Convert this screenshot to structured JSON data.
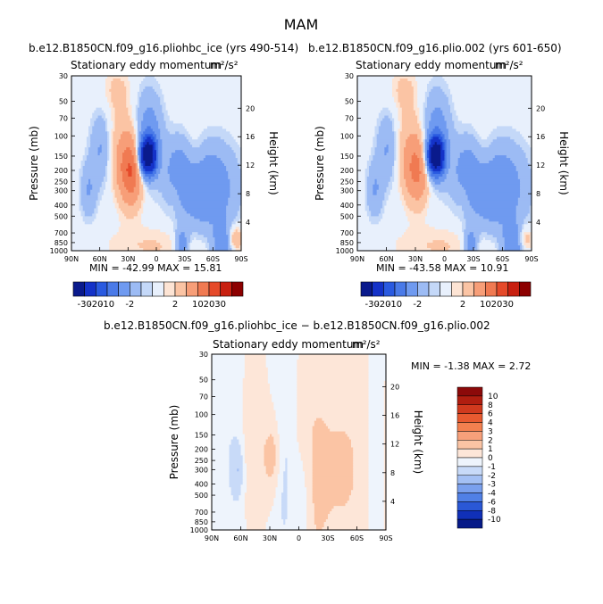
{
  "figure": {
    "title": "MAM"
  },
  "panels": [
    {
      "id": "left",
      "case_title": "b.e12.B1850CN.f09_g16.pliohbc_ice (yrs 490-514)",
      "subtitle": "Stationary eddy momentum",
      "units": "m²/s²",
      "stats": "MIN = -42.99   MAX = 15.81"
    },
    {
      "id": "right",
      "case_title": "b.e12.B1850CN.f09_g16.plio.002 (yrs 601-650)",
      "subtitle": "Stationary eddy momentum",
      "units": "m²/s²",
      "stats": "MIN = -43.58   MAX = 10.91"
    },
    {
      "id": "diff",
      "case_title": "b.e12.B1850CN.f09_g16.pliohbc_ice − b.e12.B1850CN.f09_g16.plio.002",
      "subtitle": "Stationary eddy momentum",
      "units": "m²/s²",
      "stats": "MIN =   -1.38   MAX =   2.72"
    }
  ],
  "axes": {
    "ylabel_left": "Pressure (mb)",
    "ylabel_right": "Height (km)",
    "pressure_ticks": [
      "30",
      "50",
      "70",
      "100",
      "150",
      "200",
      "250",
      "300",
      "400",
      "500",
      "700",
      "850",
      "1000"
    ],
    "height_ticks": [
      "20",
      "16",
      "12",
      "8",
      "4"
    ],
    "lat_ticks": [
      "90N",
      "60N",
      "30N",
      "0",
      "30S",
      "60S",
      "90S"
    ]
  },
  "colorbars": {
    "top": {
      "labels": [
        "-30",
        "-20",
        "-10",
        "-2",
        "2",
        "10",
        "20",
        "30"
      ],
      "colors": [
        "#0a1a8c",
        "#1432c8",
        "#2a5ae0",
        "#4a7ae8",
        "#6f9af0",
        "#9cbbf4",
        "#c4d8f8",
        "#e8f0fc",
        "#fde4d4",
        "#fbc4a4",
        "#f79e78",
        "#f07a52",
        "#e54a2a",
        "#c82010",
        "#8c0000"
      ]
    },
    "diff": {
      "labels": [
        "10",
        "8",
        "6",
        "4",
        "3",
        "2",
        "1",
        "0",
        "-1",
        "-2",
        "-3",
        "-4",
        "-6",
        "-8",
        "-10"
      ],
      "colors": [
        "#8c0a0a",
        "#b01e10",
        "#d03a1e",
        "#e85a30",
        "#f3804f",
        "#f7a07a",
        "#fbc4a4",
        "#fde6d8",
        "#eef4fc",
        "#c8daf8",
        "#a4c0f4",
        "#7aa0ee",
        "#5080e6",
        "#2a58d6",
        "#1030b8",
        "#061a88"
      ]
    }
  },
  "chart_data": [
    {
      "type": "heatmap",
      "title": "b.e12.B1850CN.f09_g16.pliohbc_ice (yrs 490-514)",
      "subtitle": "Stationary eddy momentum m²/s²",
      "xlabel": "",
      "ylabel": "Pressure (mb)",
      "y2label": "Height (km)",
      "x_range": [
        "90N",
        "90S"
      ],
      "y_range": [
        1000,
        30
      ],
      "y_scale": "log",
      "min": -42.99,
      "max": 15.81,
      "features": [
        {
          "lat": 26,
          "p": 200,
          "peak": 14,
          "sign": "positive"
        },
        {
          "lat": 9,
          "p": 150,
          "peak": -40,
          "sign": "negative"
        }
      ]
    },
    {
      "type": "heatmap",
      "title": "b.e12.B1850CN.f09_g16.plio.002 (yrs 601-650)",
      "subtitle": "Stationary eddy momentum m²/s²",
      "xlabel": "",
      "ylabel": "Pressure (mb)",
      "y2label": "Height (km)",
      "x_range": [
        "90N",
        "90S"
      ],
      "y_range": [
        1000,
        30
      ],
      "y_scale": "log",
      "min": -43.58,
      "max": 10.91,
      "features": [
        {
          "lat": 28,
          "p": 200,
          "peak": 10,
          "sign": "positive"
        },
        {
          "lat": 9,
          "p": 150,
          "peak": -40,
          "sign": "negative"
        }
      ]
    },
    {
      "type": "heatmap",
      "title": "b.e12.B1850CN.f09_g16.pliohbc_ice − b.e12.B1850CN.f09_g16.plio.002",
      "subtitle": "Stationary eddy momentum m²/s²",
      "xlabel": "",
      "ylabel": "Pressure (mb)",
      "y2label": "Height (km)",
      "x_range": [
        "90N",
        "90S"
      ],
      "y_range": [
        1000,
        30
      ],
      "y_scale": "log",
      "min": -1.38,
      "max": 2.72,
      "features": [
        {
          "lat": 27,
          "p": 230,
          "peak": 1.5,
          "sign": "positive"
        },
        {
          "lat": 62,
          "p": 300,
          "peak": -1,
          "sign": "negative"
        }
      ]
    }
  ]
}
